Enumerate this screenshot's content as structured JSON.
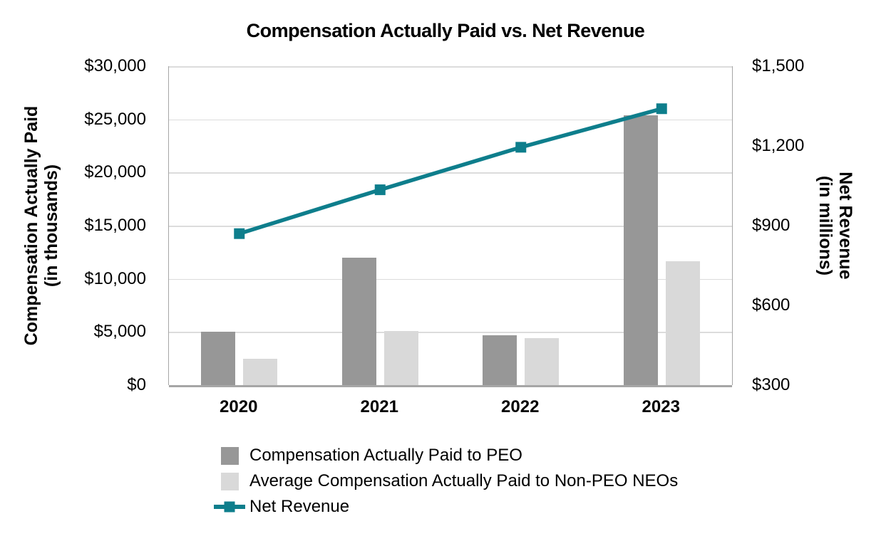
{
  "chart": {
    "title": "Compensation Actually Paid vs. Net Revenue",
    "left_axis": {
      "title_line1": "Compensation Actually Paid",
      "title_line2": "(in thousands)",
      "tick_labels": [
        "$30,000",
        "$25,000",
        "$20,000",
        "$15,000",
        "$10,000",
        "$5,000",
        "$0"
      ]
    },
    "right_axis": {
      "title_line1": "Net Revenue",
      "title_line2": "(in millions)",
      "tick_labels": [
        "$1,500",
        "$1,200",
        "$900",
        "$600",
        "$300"
      ]
    }
  },
  "colors": {
    "peo_bar": "#979797",
    "non_peo_bar": "#D9D9D9",
    "net_revenue_line": "#0E7E8C",
    "gridline": "#DCDCDC",
    "axis_line": "#A6A6A6",
    "text": "#000000"
  },
  "chart_data": {
    "type": "bar",
    "subtype": "combo-bar-line-dual-axis",
    "title": "Compensation Actually Paid vs. Net Revenue",
    "categories": [
      "2020",
      "2021",
      "2022",
      "2023"
    ],
    "series": [
      {
        "name": "Compensation Actually Paid to PEO",
        "type": "bar",
        "axis": "left",
        "color": "#979797",
        "values": [
          5000,
          12000,
          4700,
          25400
        ]
      },
      {
        "name": "Average Compensation Actually Paid to Non-PEO NEOs",
        "type": "bar",
        "axis": "left",
        "color": "#D9D9D9",
        "values": [
          2500,
          5100,
          4400,
          11650
        ]
      },
      {
        "name": "Net Revenue",
        "type": "line",
        "axis": "right",
        "color": "#0E7E8C",
        "marker": "square",
        "values": [
          870,
          1035,
          1195,
          1340
        ]
      }
    ],
    "left_axis_label": "Compensation Actually Paid (in thousands)",
    "right_axis_label": "Net Revenue (in millions)",
    "left_ylim": [
      0,
      30000
    ],
    "left_tick_step": 5000,
    "right_ylim": [
      300,
      1500
    ],
    "right_tick_step": 300,
    "grid": true,
    "legend_position": "bottom-left"
  }
}
